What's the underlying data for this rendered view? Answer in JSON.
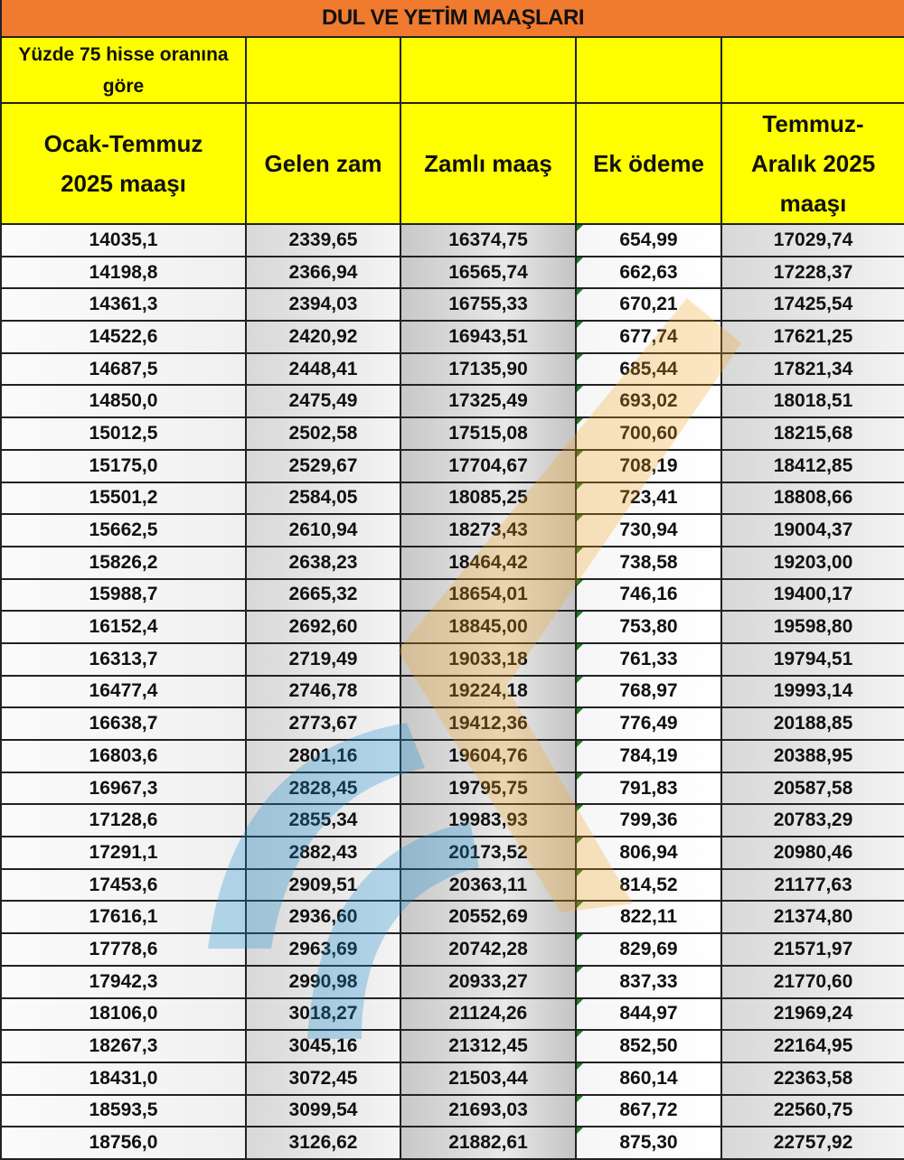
{
  "title": "DUL VE YETİM MAAŞLARI",
  "header": {
    "subheader": "Yüzde 75 hisse oranına göre",
    "columns": [
      "Ocak-Temmuz 2025 maaşı",
      "Gelen zam",
      "Zamlı maaş",
      "Ek ödeme",
      "Temmuz-Aralık 2025 maaşı"
    ]
  },
  "rows": [
    [
      "14035,1",
      "2339,65",
      "16374,75",
      "654,99",
      "17029,74"
    ],
    [
      "14198,8",
      "2366,94",
      "16565,74",
      "662,63",
      "17228,37"
    ],
    [
      "14361,3",
      "2394,03",
      "16755,33",
      "670,21",
      "17425,54"
    ],
    [
      "14522,6",
      "2420,92",
      "16943,51",
      "677,74",
      "17621,25"
    ],
    [
      "14687,5",
      "2448,41",
      "17135,90",
      "685,44",
      "17821,34"
    ],
    [
      "14850,0",
      "2475,49",
      "17325,49",
      "693,02",
      "18018,51"
    ],
    [
      "15012,5",
      "2502,58",
      "17515,08",
      "700,60",
      "18215,68"
    ],
    [
      "15175,0",
      "2529,67",
      "17704,67",
      "708,19",
      "18412,85"
    ],
    [
      "15501,2",
      "2584,05",
      "18085,25",
      "723,41",
      "18808,66"
    ],
    [
      "15662,5",
      "2610,94",
      "18273,43",
      "730,94",
      "19004,37"
    ],
    [
      "15826,2",
      "2638,23",
      "18464,42",
      "738,58",
      "19203,00"
    ],
    [
      "15988,7",
      "2665,32",
      "18654,01",
      "746,16",
      "19400,17"
    ],
    [
      "16152,4",
      "2692,60",
      "18845,00",
      "753,80",
      "19598,80"
    ],
    [
      "16313,7",
      "2719,49",
      "19033,18",
      "761,33",
      "19794,51"
    ],
    [
      "16477,4",
      "2746,78",
      "19224,18",
      "768,97",
      "19993,14"
    ],
    [
      "16638,7",
      "2773,67",
      "19412,36",
      "776,49",
      "20188,85"
    ],
    [
      "16803,6",
      "2801,16",
      "19604,76",
      "784,19",
      "20388,95"
    ],
    [
      "16967,3",
      "2828,45",
      "19795,75",
      "791,83",
      "20587,58"
    ],
    [
      "17128,6",
      "2855,34",
      "19983,93",
      "799,36",
      "20783,29"
    ],
    [
      "17291,1",
      "2882,43",
      "20173,52",
      "806,94",
      "20980,46"
    ],
    [
      "17453,6",
      "2909,51",
      "20363,11",
      "814,52",
      "21177,63"
    ],
    [
      "17616,1",
      "2936,60",
      "20552,69",
      "822,11",
      "21374,80"
    ],
    [
      "17778,6",
      "2963,69",
      "20742,28",
      "829,69",
      "21571,97"
    ],
    [
      "17942,3",
      "2990,98",
      "20933,27",
      "837,33",
      "21770,60"
    ],
    [
      "18106,0",
      "3018,27",
      "21124,26",
      "844,97",
      "21969,24"
    ],
    [
      "18267,3",
      "3045,16",
      "21312,45",
      "852,50",
      "22164,95"
    ],
    [
      "18431,0",
      "3072,45",
      "21503,44",
      "860,14",
      "22363,58"
    ],
    [
      "18593,5",
      "3099,54",
      "21693,03",
      "867,72",
      "22560,75"
    ],
    [
      "18756,0",
      "3126,62",
      "21882,61",
      "875,30",
      "22757,92"
    ]
  ],
  "colors": {
    "title_bg": "#f07a2e",
    "header_bg": "#ffff00"
  }
}
